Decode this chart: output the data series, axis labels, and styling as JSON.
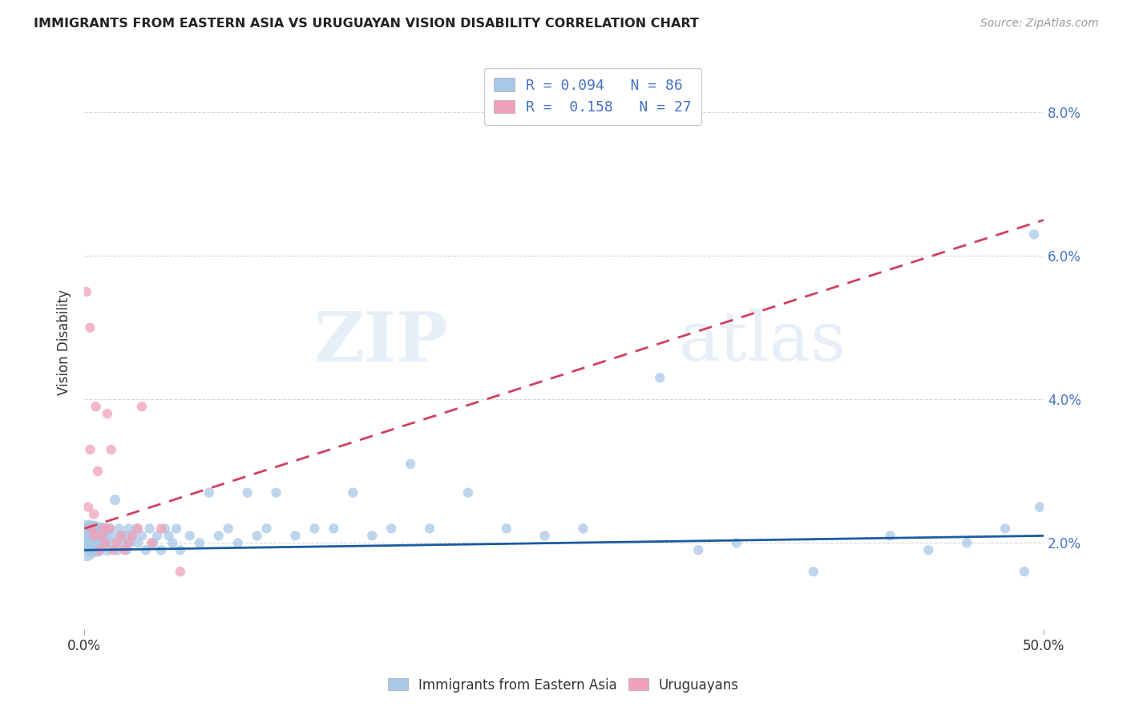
{
  "title": "IMMIGRANTS FROM EASTERN ASIA VS URUGUAYAN VISION DISABILITY CORRELATION CHART",
  "source": "Source: ZipAtlas.com",
  "ylabel": "Vision Disability",
  "xlim": [
    0,
    0.5
  ],
  "ylim": [
    0.008,
    0.088
  ],
  "xtick_positions": [
    0.0,
    0.5
  ],
  "xtick_labels": [
    "0.0%",
    "50.0%"
  ],
  "yticks": [
    0.02,
    0.04,
    0.06,
    0.08
  ],
  "ytick_labels": [
    "2.0%",
    "4.0%",
    "6.0%",
    "8.0%"
  ],
  "blue_R": 0.094,
  "blue_N": 86,
  "pink_R": 0.158,
  "pink_N": 27,
  "blue_color": "#A8C8E8",
  "pink_color": "#F0A0B8",
  "blue_line_color": "#1A5BA0",
  "pink_line_color": "#D04060",
  "legend_label_blue": "Immigrants from Eastern Asia",
  "legend_label_pink": "Uruguayans",
  "blue_line_x0": 0.0,
  "blue_line_y0": 0.019,
  "blue_line_x1": 0.5,
  "blue_line_y1": 0.021,
  "pink_line_x0": 0.0,
  "pink_line_y0": 0.022,
  "pink_line_x1": 0.5,
  "pink_line_y1": 0.065,
  "watermark": "ZIPatlas",
  "background_color": "#FFFFFF",
  "grid_color": "#CCCCCC",
  "blue_x": [
    0.001,
    0.001,
    0.001,
    0.001,
    0.002,
    0.002,
    0.002,
    0.003,
    0.003,
    0.003,
    0.004,
    0.004,
    0.005,
    0.005,
    0.005,
    0.006,
    0.006,
    0.007,
    0.007,
    0.008,
    0.008,
    0.009,
    0.009,
    0.01,
    0.01,
    0.011,
    0.012,
    0.013,
    0.014,
    0.015,
    0.016,
    0.017,
    0.018,
    0.019,
    0.02,
    0.021,
    0.022,
    0.023,
    0.024,
    0.025,
    0.027,
    0.028,
    0.03,
    0.032,
    0.034,
    0.036,
    0.038,
    0.04,
    0.042,
    0.044,
    0.046,
    0.048,
    0.05,
    0.055,
    0.06,
    0.065,
    0.07,
    0.075,
    0.08,
    0.085,
    0.09,
    0.095,
    0.1,
    0.11,
    0.12,
    0.13,
    0.14,
    0.15,
    0.16,
    0.17,
    0.18,
    0.2,
    0.22,
    0.24,
    0.26,
    0.3,
    0.32,
    0.34,
    0.38,
    0.42,
    0.44,
    0.46,
    0.48,
    0.49,
    0.495,
    0.498
  ],
  "blue_y": [
    0.021,
    0.02,
    0.022,
    0.019,
    0.021,
    0.02,
    0.022,
    0.02,
    0.021,
    0.022,
    0.019,
    0.021,
    0.02,
    0.022,
    0.021,
    0.02,
    0.022,
    0.021,
    0.019,
    0.022,
    0.02,
    0.021,
    0.02,
    0.022,
    0.02,
    0.021,
    0.019,
    0.022,
    0.021,
    0.02,
    0.026,
    0.019,
    0.022,
    0.021,
    0.02,
    0.021,
    0.019,
    0.022,
    0.02,
    0.021,
    0.022,
    0.02,
    0.021,
    0.019,
    0.022,
    0.02,
    0.021,
    0.019,
    0.022,
    0.021,
    0.02,
    0.022,
    0.019,
    0.021,
    0.02,
    0.027,
    0.021,
    0.022,
    0.02,
    0.027,
    0.021,
    0.022,
    0.027,
    0.021,
    0.022,
    0.022,
    0.027,
    0.021,
    0.022,
    0.031,
    0.022,
    0.027,
    0.022,
    0.021,
    0.022,
    0.043,
    0.019,
    0.02,
    0.016,
    0.021,
    0.019,
    0.02,
    0.022,
    0.016,
    0.063,
    0.025
  ],
  "blue_s": [
    200,
    300,
    150,
    400,
    200,
    350,
    250,
    180,
    220,
    200,
    150,
    180,
    160,
    200,
    150,
    140,
    160,
    130,
    150,
    120,
    130,
    120,
    110,
    120,
    110,
    100,
    100,
    100,
    90,
    90,
    90,
    90,
    80,
    80,
    80,
    80,
    80,
    80,
    80,
    80,
    80,
    80,
    80,
    80,
    80,
    80,
    80,
    80,
    80,
    80,
    80,
    80,
    80,
    80,
    80,
    80,
    80,
    80,
    80,
    80,
    80,
    80,
    80,
    80,
    80,
    80,
    80,
    80,
    80,
    80,
    80,
    80,
    80,
    80,
    80,
    80,
    80,
    80,
    80,
    80,
    80,
    80,
    80,
    80,
    80,
    80
  ],
  "pink_x": [
    0.001,
    0.002,
    0.003,
    0.003,
    0.004,
    0.005,
    0.005,
    0.006,
    0.007,
    0.008,
    0.009,
    0.01,
    0.011,
    0.012,
    0.013,
    0.014,
    0.015,
    0.017,
    0.019,
    0.021,
    0.023,
    0.025,
    0.028,
    0.03,
    0.035,
    0.04,
    0.05
  ],
  "pink_y": [
    0.055,
    0.025,
    0.033,
    0.05,
    0.022,
    0.021,
    0.024,
    0.039,
    0.03,
    0.019,
    0.021,
    0.022,
    0.02,
    0.038,
    0.022,
    0.033,
    0.019,
    0.02,
    0.021,
    0.019,
    0.02,
    0.021,
    0.022,
    0.039,
    0.02,
    0.022,
    0.016
  ],
  "pink_s": [
    80,
    80,
    80,
    80,
    80,
    80,
    80,
    80,
    80,
    80,
    80,
    80,
    80,
    80,
    80,
    80,
    80,
    80,
    80,
    80,
    80,
    80,
    80,
    80,
    80,
    80,
    80
  ]
}
